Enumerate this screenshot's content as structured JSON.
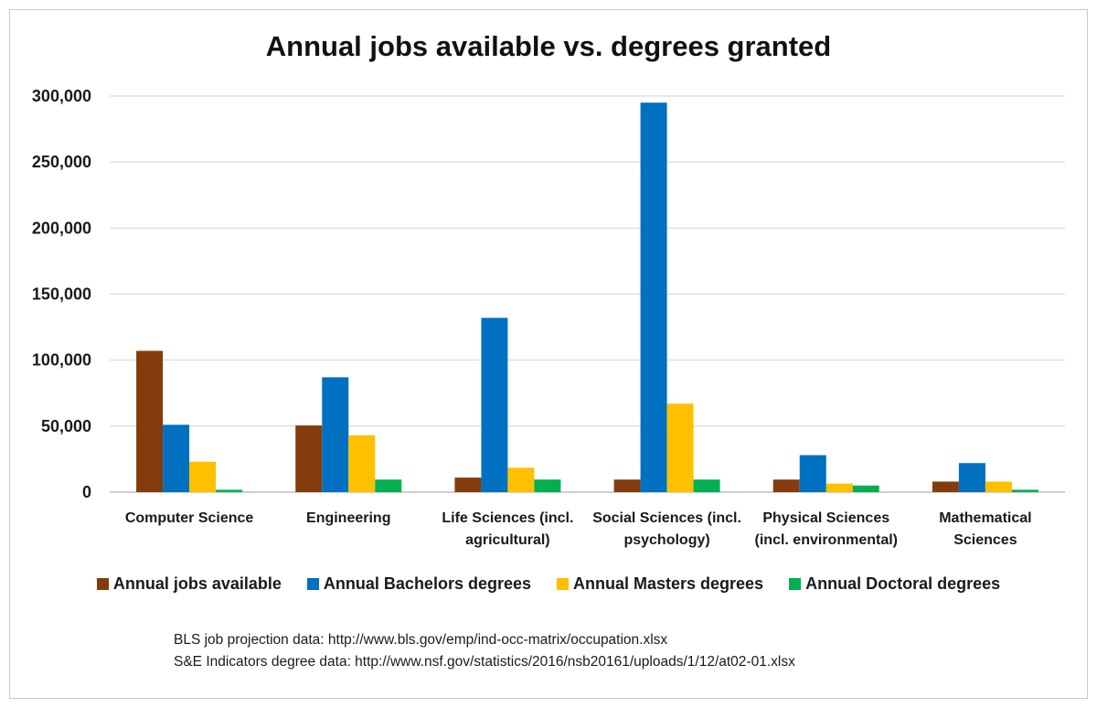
{
  "chart_data": {
    "type": "bar",
    "title": "Annual jobs available vs. degrees granted",
    "categories": [
      [
        "Computer Science"
      ],
      [
        "Engineering"
      ],
      [
        "Life Sciences (incl.",
        "agricultural)"
      ],
      [
        "Social Sciences (incl.",
        "psychology)"
      ],
      [
        "Physical Sciences",
        "(incl. environmental)"
      ],
      [
        "Mathematical",
        "Sciences"
      ]
    ],
    "series": [
      {
        "name": "Annual  jobs available",
        "color": "#843c0c",
        "values": [
          107000,
          50500,
          11000,
          9500,
          9500,
          8000
        ]
      },
      {
        "name": "Annual  Bachelors degrees",
        "color": "#0070c0",
        "values": [
          51000,
          87000,
          132000,
          295000,
          28000,
          22000
        ]
      },
      {
        "name": "Annual  Masters degrees",
        "color": "#ffc000",
        "values": [
          23000,
          43000,
          18500,
          67000,
          6500,
          8000
        ]
      },
      {
        "name": "Annual  Doctoral degrees",
        "color": "#00b050",
        "values": [
          1800,
          9500,
          9500,
          9500,
          5000,
          1800
        ]
      }
    ],
    "ylim": [
      0,
      300000
    ],
    "yticks": [
      0,
      50000,
      100000,
      150000,
      200000,
      250000,
      300000
    ],
    "ytick_labels": [
      "0",
      "50,000",
      "100,000",
      "150,000",
      "200,000",
      "250,000",
      "300,000"
    ],
    "xlabel": "",
    "ylabel": "",
    "grid": true,
    "legend_position": "bottom"
  },
  "sources": [
    "BLS job projection data: http://www.bls.gov/emp/ind-occ-matrix/occupation.xlsx",
    "S&E Indicators degree data: http://www.nsf.gov/statistics/2016/nsb20161/uploads/1/12/at02-01.xlsx"
  ]
}
